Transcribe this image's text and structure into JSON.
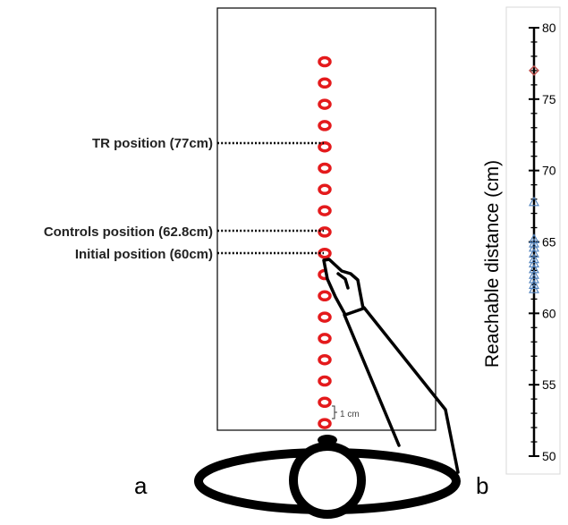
{
  "panel_a": {
    "label": "a",
    "scale_bar": "1 cm",
    "callouts": {
      "tr": "TR position (77cm)",
      "controls": "Controls position (62.8cm)",
      "initial": "Initial position (60cm)"
    }
  },
  "panel_b": {
    "label": "b"
  },
  "colors": {
    "target_ring": "#e41a1c",
    "tr_marker": "#c0504d",
    "control_marker": "#4f81bd",
    "ink": "#000000"
  },
  "chart_data": {
    "type": "scatter",
    "ylabel": "Reachable distance (cm)",
    "ylim": [
      50,
      80
    ],
    "yticks": [
      "50",
      "55",
      "60",
      "65",
      "70",
      "75",
      "80"
    ],
    "series": [
      {
        "marker": "diamond",
        "color": "#c0504d",
        "values": [
          77
        ]
      },
      {
        "marker": "triangle",
        "color": "#4f81bd",
        "values": [
          67.8,
          65.2,
          64.9,
          64.6,
          64.2,
          63.8,
          63.5,
          63.1,
          62.7,
          62.4,
          62.0,
          61.7
        ]
      }
    ]
  }
}
